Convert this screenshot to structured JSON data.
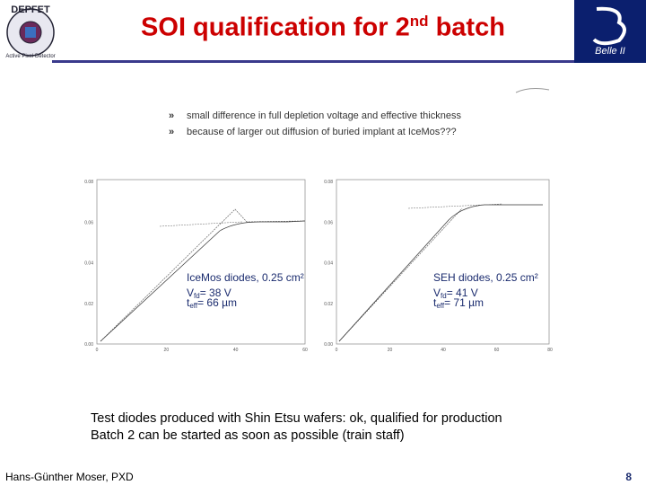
{
  "header": {
    "title_main": "SOI qualification for 2",
    "title_sup": "nd",
    "title_end": " batch",
    "left_logo": {
      "top": "DEPFET",
      "ring": "Active Pixel Detector"
    },
    "right_logo": {
      "text": "Belle II"
    }
  },
  "bullets": [
    {
      "marker": "»",
      "text": "small difference in full depletion voltage and effective thickness"
    },
    {
      "marker": "»",
      "text": "because of larger out diffusion of buried implant at IceMos???"
    }
  ],
  "plots": [
    {
      "annotation": {
        "line1": "IceMos diodes, 0.25 cm²",
        "v_main": "V",
        "v_sub": "fd",
        "v_rest": "= 38 V",
        "t_main": "t",
        "t_sub": "eff",
        "t_rest": "= 66 µm"
      },
      "yticks": [
        "0.08",
        "0.06",
        "0.04",
        "0.02",
        "0.00"
      ],
      "xticks": [
        "0",
        "20",
        "40",
        "60"
      ]
    },
    {
      "annotation": {
        "line1": "SEH diodes, 0.25 cm²",
        "v_main": "V",
        "v_sub": "fd",
        "v_rest": "= 41 V",
        "t_main": "t",
        "t_sub": "eff",
        "t_rest": "= 71 µm"
      },
      "yticks": [
        "0.08",
        "0.06",
        "0.04",
        "0.02",
        "0.00"
      ],
      "xticks": [
        "0",
        "20",
        "40",
        "60",
        "80"
      ]
    }
  ],
  "body": [
    "Test diodes produced with Shin Etsu wafers: ok, qualified for production",
    "Batch 2 can be started as soon as possible (train staff)"
  ],
  "footer": {
    "author": "Hans-Günther Moser, PXD",
    "page": "8"
  }
}
